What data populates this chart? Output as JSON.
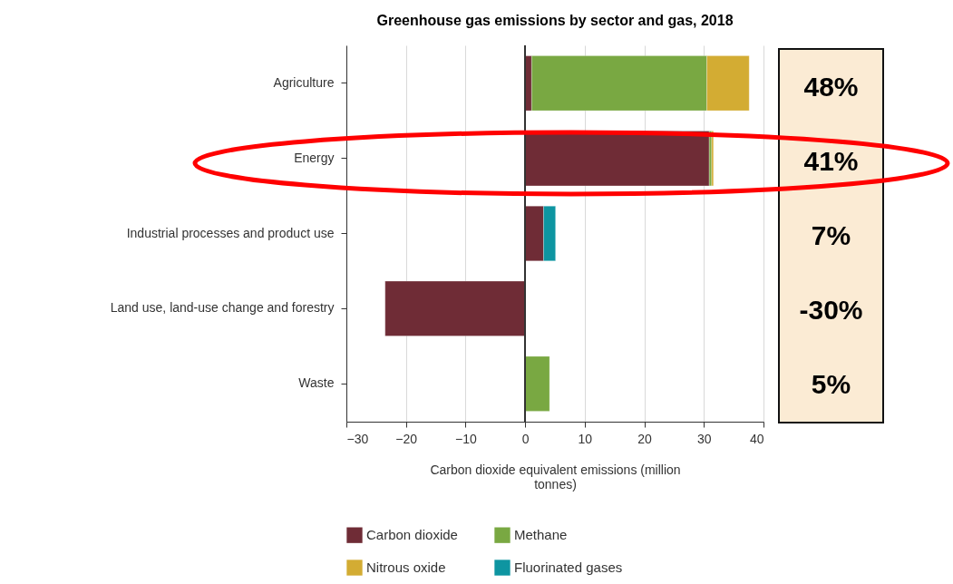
{
  "chart_data": {
    "type": "bar",
    "orientation": "horizontal",
    "stacked": true,
    "title": "Greenhouse gas emissions by sector and gas, 2018",
    "xlabel": "Carbon dioxide equivalent emissions (million tonnes)",
    "categories": [
      "Agriculture",
      "Energy",
      "Industrial processes and product use",
      "Land use, land-use change and forestry",
      "Waste"
    ],
    "series": [
      {
        "name": "Carbon dioxide",
        "color": "#6f2c36",
        "values": [
          1.1,
          30.9,
          3.1,
          -23.5,
          null
        ]
      },
      {
        "name": "Methane",
        "color": "#79a842",
        "values": [
          29.4,
          0.4,
          null,
          null,
          4.1
        ]
      },
      {
        "name": "Nitrous oxide",
        "color": "#d3ac33",
        "values": [
          7.1,
          0.3,
          null,
          null,
          null
        ]
      },
      {
        "name": "Fluorinated gases",
        "color": "#0e95a1",
        "values": [
          null,
          null,
          2.0,
          null,
          null
        ]
      }
    ],
    "xlim": [
      -30,
      40
    ],
    "xticks": [
      -30,
      -20,
      -10,
      0,
      10,
      20,
      30,
      40
    ],
    "grid": "x",
    "legend": "bottom",
    "ref_lines": [
      {
        "axis": "x",
        "value": 0,
        "color": "#333333"
      }
    ],
    "annotations": [
      "48%",
      "41%",
      "7%",
      "-30%",
      "5%"
    ]
  }
}
